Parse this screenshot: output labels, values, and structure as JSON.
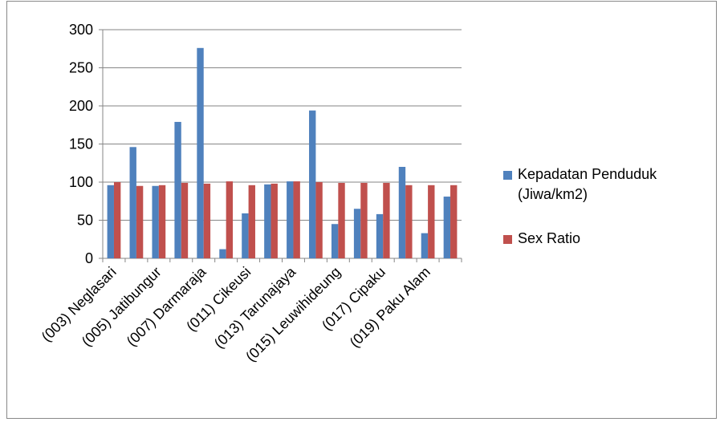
{
  "chart_data": {
    "type": "bar",
    "categories": [
      "(003) Neglasari",
      null,
      "(005) Jatibungur",
      null,
      "(007) Darmaraja",
      null,
      "(011) Cikeusi",
      null,
      "(013) Tarunajaya",
      null,
      "(015) Leuwihideung",
      null,
      "(017) Cipaku",
      null,
      "(019) Paku Alam",
      null
    ],
    "series": [
      {
        "name": "Kepadatan Penduduk (Jiwa/km2)",
        "color": "#4f81bd",
        "values": [
          96,
          146,
          95,
          179,
          276,
          12,
          59,
          97,
          101,
          194,
          45,
          65,
          58,
          120,
          33,
          81
        ]
      },
      {
        "name": "Sex Ratio",
        "color": "#c0504d",
        "values": [
          100,
          95,
          96,
          99,
          98,
          101,
          96,
          98,
          101,
          100,
          99,
          99,
          99,
          96,
          96,
          96
        ]
      }
    ],
    "ylim": [
      0,
      300
    ],
    "yticks": [
      0,
      50,
      100,
      150,
      200,
      250,
      300
    ],
    "grid": true,
    "legend": "right"
  }
}
